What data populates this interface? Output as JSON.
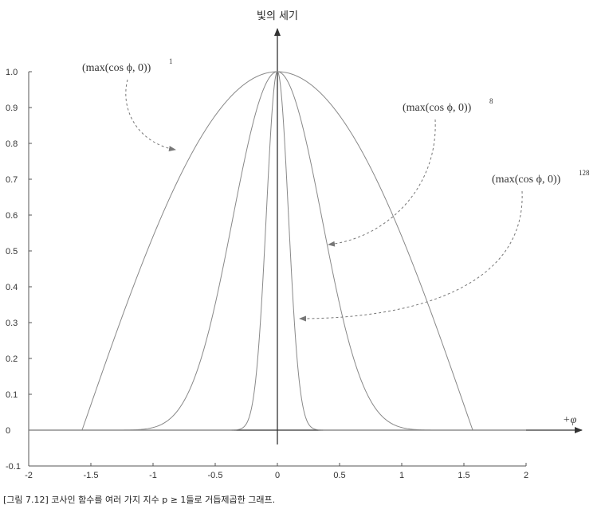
{
  "chart_data": {
    "type": "line",
    "title": "",
    "ylabel": "빛의 세기",
    "xlabel": "+φ",
    "xlim": [
      -2,
      2
    ],
    "ylim": [
      -0.1,
      1.0
    ],
    "xticks": [
      "-2",
      "-1.5",
      "-1",
      "-0.5",
      "0",
      "0.5",
      "1",
      "1.5",
      "2"
    ],
    "yticks": [
      "1.0",
      "0.9",
      "0.8",
      "0.7",
      "0.6",
      "0.5",
      "0.4",
      "0.3",
      "0.2",
      "0.1",
      "0",
      "-0.1"
    ],
    "series": [
      {
        "exponent": 1
      },
      {
        "exponent": 8
      },
      {
        "exponent": 128
      }
    ],
    "annotations": [
      {
        "base": "(max(cos ϕ, 0))",
        "sup": "1"
      },
      {
        "base": "(max(cos ϕ, 0))",
        "sup": "8"
      },
      {
        "base": "(max(cos ϕ, 0))",
        "sup": "128"
      }
    ],
    "colors": {
      "curve": "#888888",
      "axis": "#333333",
      "arrow": "#777777"
    }
  },
  "caption": "[그림 7.12] 코사인 함수를 여러 가지 지수 p ≥ 1들로 거듭제곱한 그래프."
}
